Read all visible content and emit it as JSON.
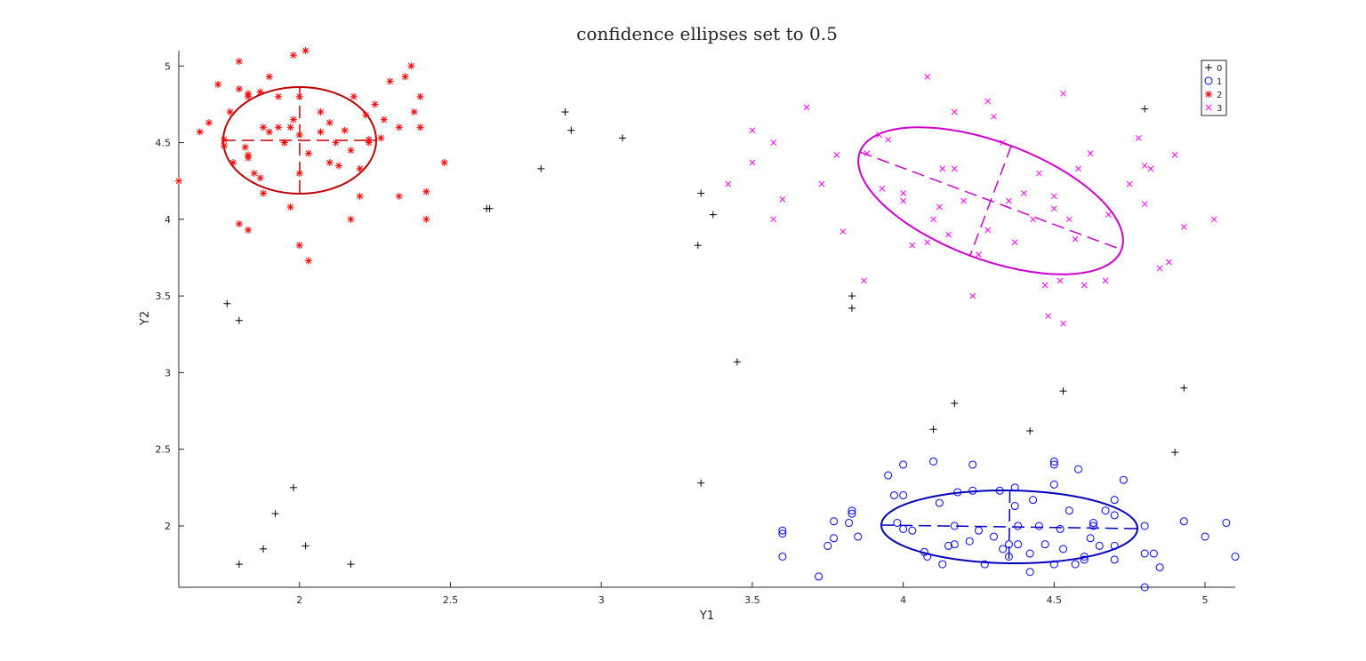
{
  "chart_data": {
    "type": "scatter",
    "title": "confidence ellipses set to 0.5",
    "xlabel": "Y1",
    "ylabel": "Y2",
    "xlim": [
      1.6,
      5.1
    ],
    "ylim": [
      1.6,
      5.1
    ],
    "x_ticks": [
      "2",
      "2.5",
      "3",
      "3.5",
      "4",
      "4.5",
      "5"
    ],
    "y_ticks": [
      "5",
      "4.5",
      "4",
      "3.5",
      "3",
      "2.5",
      "2"
    ],
    "grid": false,
    "legend_position": "top-right",
    "series": [
      {
        "name": "0",
        "marker": "plus",
        "color": "#000000",
        "points": [
          [
            1.76,
            3.45
          ],
          [
            1.8,
            3.34
          ],
          [
            1.8,
            1.75
          ],
          [
            1.88,
            1.85
          ],
          [
            1.92,
            2.08
          ],
          [
            1.98,
            2.25
          ],
          [
            2.02,
            1.87
          ],
          [
            2.17,
            1.75
          ],
          [
            2.62,
            4.07
          ],
          [
            2.63,
            4.07
          ],
          [
            2.8,
            4.33
          ],
          [
            2.88,
            4.7
          ],
          [
            2.9,
            4.58
          ],
          [
            3.07,
            4.53
          ],
          [
            3.32,
            3.83
          ],
          [
            3.33,
            4.17
          ],
          [
            3.33,
            2.28
          ],
          [
            3.37,
            4.03
          ],
          [
            3.45,
            3.07
          ],
          [
            3.83,
            3.5
          ],
          [
            3.83,
            3.42
          ],
          [
            4.1,
            2.63
          ],
          [
            4.17,
            2.8
          ],
          [
            4.42,
            2.62
          ],
          [
            4.53,
            2.88
          ],
          [
            4.8,
            4.72
          ],
          [
            4.9,
            2.48
          ],
          [
            4.93,
            2.9
          ]
        ]
      },
      {
        "name": "1",
        "marker": "circle",
        "color": "#0000ff",
        "points": [
          [
            3.6,
            1.8
          ],
          [
            3.6,
            1.95
          ],
          [
            3.6,
            1.97
          ],
          [
            3.72,
            1.67
          ],
          [
            3.75,
            1.87
          ],
          [
            3.77,
            1.92
          ],
          [
            3.77,
            2.03
          ],
          [
            3.82,
            2.02
          ],
          [
            3.83,
            2.08
          ],
          [
            3.83,
            2.1
          ],
          [
            3.85,
            1.93
          ],
          [
            3.95,
            2.33
          ],
          [
            3.97,
            2.2
          ],
          [
            3.98,
            2.02
          ],
          [
            4.0,
            1.98
          ],
          [
            4.0,
            2.2
          ],
          [
            4.0,
            2.4
          ],
          [
            4.03,
            1.97
          ],
          [
            4.07,
            1.83
          ],
          [
            4.08,
            1.8
          ],
          [
            4.1,
            2.42
          ],
          [
            4.12,
            2.15
          ],
          [
            4.13,
            1.75
          ],
          [
            4.15,
            1.87
          ],
          [
            4.17,
            1.88
          ],
          [
            4.17,
            2.0
          ],
          [
            4.18,
            2.22
          ],
          [
            4.22,
            1.9
          ],
          [
            4.23,
            2.23
          ],
          [
            4.23,
            2.4
          ],
          [
            4.25,
            1.97
          ],
          [
            4.27,
            1.75
          ],
          [
            4.3,
            1.93
          ],
          [
            4.32,
            2.23
          ],
          [
            4.33,
            1.85
          ],
          [
            4.35,
            1.88
          ],
          [
            4.35,
            1.8
          ],
          [
            4.37,
            2.13
          ],
          [
            4.37,
            2.25
          ],
          [
            4.38,
            1.88
          ],
          [
            4.38,
            2.0
          ],
          [
            4.42,
            1.82
          ],
          [
            4.42,
            1.7
          ],
          [
            4.43,
            2.17
          ],
          [
            4.45,
            2.0
          ],
          [
            4.47,
            1.88
          ],
          [
            4.5,
            2.4
          ],
          [
            4.5,
            2.42
          ],
          [
            4.5,
            2.27
          ],
          [
            4.5,
            1.75
          ],
          [
            4.52,
            1.98
          ],
          [
            4.53,
            1.85
          ],
          [
            4.55,
            2.1
          ],
          [
            4.57,
            1.75
          ],
          [
            4.58,
            2.37
          ],
          [
            4.6,
            1.78
          ],
          [
            4.6,
            1.8
          ],
          [
            4.62,
            1.92
          ],
          [
            4.63,
            2.0
          ],
          [
            4.63,
            2.02
          ],
          [
            4.65,
            1.87
          ],
          [
            4.67,
            2.1
          ],
          [
            4.7,
            2.17
          ],
          [
            4.7,
            1.78
          ],
          [
            4.7,
            2.07
          ],
          [
            4.7,
            1.87
          ],
          [
            4.73,
            2.3
          ],
          [
            4.8,
            2.0
          ],
          [
            4.8,
            1.82
          ],
          [
            4.8,
            1.6
          ],
          [
            4.83,
            1.82
          ],
          [
            4.85,
            1.73
          ],
          [
            4.93,
            2.03
          ],
          [
            5.0,
            1.93
          ],
          [
            5.07,
            2.02
          ],
          [
            5.1,
            1.8
          ]
        ]
      },
      {
        "name": "2",
        "marker": "asterisk",
        "color": "#ff0000",
        "points": [
          [
            1.6,
            4.25
          ],
          [
            1.67,
            4.57
          ],
          [
            1.7,
            4.63
          ],
          [
            1.73,
            4.88
          ],
          [
            1.75,
            4.48
          ],
          [
            1.75,
            4.52
          ],
          [
            1.77,
            4.7
          ],
          [
            1.78,
            4.37
          ],
          [
            1.8,
            4.85
          ],
          [
            1.8,
            5.03
          ],
          [
            1.8,
            3.97
          ],
          [
            1.82,
            4.47
          ],
          [
            1.83,
            4.4
          ],
          [
            1.83,
            4.42
          ],
          [
            1.83,
            4.82
          ],
          [
            1.83,
            4.8
          ],
          [
            1.83,
            3.93
          ],
          [
            1.85,
            4.3
          ],
          [
            1.87,
            4.27
          ],
          [
            1.87,
            4.83
          ],
          [
            1.88,
            4.6
          ],
          [
            1.88,
            4.17
          ],
          [
            1.9,
            4.57
          ],
          [
            1.9,
            4.93
          ],
          [
            1.93,
            4.8
          ],
          [
            1.93,
            4.6
          ],
          [
            1.95,
            4.5
          ],
          [
            1.95,
            4.5
          ],
          [
            1.97,
            4.6
          ],
          [
            1.97,
            4.08
          ],
          [
            1.98,
            4.65
          ],
          [
            1.98,
            5.07
          ],
          [
            2.0,
            4.3
          ],
          [
            2.0,
            4.8
          ],
          [
            2.0,
            4.55
          ],
          [
            2.0,
            3.83
          ],
          [
            2.02,
            5.1
          ],
          [
            2.03,
            4.43
          ],
          [
            2.03,
            3.73
          ],
          [
            2.07,
            4.57
          ],
          [
            2.07,
            4.7
          ],
          [
            2.1,
            4.37
          ],
          [
            2.1,
            4.63
          ],
          [
            2.12,
            4.5
          ],
          [
            2.13,
            4.35
          ],
          [
            2.15,
            4.58
          ],
          [
            2.17,
            4.45
          ],
          [
            2.17,
            4.0
          ],
          [
            2.18,
            4.8
          ],
          [
            2.2,
            4.15
          ],
          [
            2.2,
            4.33
          ],
          [
            2.22,
            4.68
          ],
          [
            2.23,
            4.5
          ],
          [
            2.23,
            4.52
          ],
          [
            2.25,
            4.75
          ],
          [
            2.27,
            4.53
          ],
          [
            2.28,
            4.65
          ],
          [
            2.3,
            4.9
          ],
          [
            2.33,
            4.6
          ],
          [
            2.33,
            4.15
          ],
          [
            2.35,
            4.93
          ],
          [
            2.37,
            5.0
          ],
          [
            2.38,
            4.7
          ],
          [
            2.4,
            4.8
          ],
          [
            2.4,
            4.6
          ],
          [
            2.42,
            4.18
          ],
          [
            2.42,
            4.0
          ],
          [
            2.48,
            4.37
          ]
        ]
      },
      {
        "name": "3",
        "marker": "cross",
        "color": "#ff00ff",
        "points": [
          [
            3.42,
            4.23
          ],
          [
            3.5,
            4.58
          ],
          [
            3.5,
            4.37
          ],
          [
            3.57,
            4.5
          ],
          [
            3.57,
            4.0
          ],
          [
            3.6,
            4.13
          ],
          [
            3.68,
            4.73
          ],
          [
            3.73,
            4.23
          ],
          [
            3.78,
            4.42
          ],
          [
            3.8,
            3.92
          ],
          [
            3.87,
            3.6
          ],
          [
            3.88,
            4.43
          ],
          [
            3.92,
            4.55
          ],
          [
            3.93,
            4.2
          ],
          [
            3.95,
            4.52
          ],
          [
            4.0,
            4.17
          ],
          [
            4.0,
            4.12
          ],
          [
            4.03,
            3.83
          ],
          [
            4.08,
            4.93
          ],
          [
            4.08,
            3.85
          ],
          [
            4.1,
            4.0
          ],
          [
            4.12,
            4.08
          ],
          [
            4.13,
            4.33
          ],
          [
            4.15,
            3.9
          ],
          [
            4.17,
            4.33
          ],
          [
            4.17,
            4.7
          ],
          [
            4.2,
            4.12
          ],
          [
            4.23,
            3.5
          ],
          [
            4.25,
            3.77
          ],
          [
            4.28,
            3.93
          ],
          [
            4.28,
            4.77
          ],
          [
            4.3,
            4.67
          ],
          [
            4.33,
            4.5
          ],
          [
            4.35,
            4.12
          ],
          [
            4.37,
            3.85
          ],
          [
            4.4,
            4.17
          ],
          [
            4.43,
            4.0
          ],
          [
            4.45,
            4.3
          ],
          [
            4.47,
            3.57
          ],
          [
            4.48,
            3.37
          ],
          [
            4.5,
            4.15
          ],
          [
            4.5,
            4.07
          ],
          [
            4.52,
            3.6
          ],
          [
            4.53,
            4.82
          ],
          [
            4.53,
            3.32
          ],
          [
            4.55,
            4.0
          ],
          [
            4.57,
            3.87
          ],
          [
            4.58,
            4.33
          ],
          [
            4.6,
            3.57
          ],
          [
            4.62,
            4.43
          ],
          [
            4.67,
            3.6
          ],
          [
            4.68,
            4.03
          ],
          [
            4.75,
            4.23
          ],
          [
            4.78,
            4.53
          ],
          [
            4.8,
            4.35
          ],
          [
            4.8,
            4.1
          ],
          [
            4.82,
            4.33
          ],
          [
            4.85,
            3.68
          ],
          [
            4.88,
            3.72
          ],
          [
            4.9,
            4.42
          ],
          [
            4.93,
            3.95
          ],
          [
            5.03,
            4.0
          ]
        ]
      }
    ]
  }
}
